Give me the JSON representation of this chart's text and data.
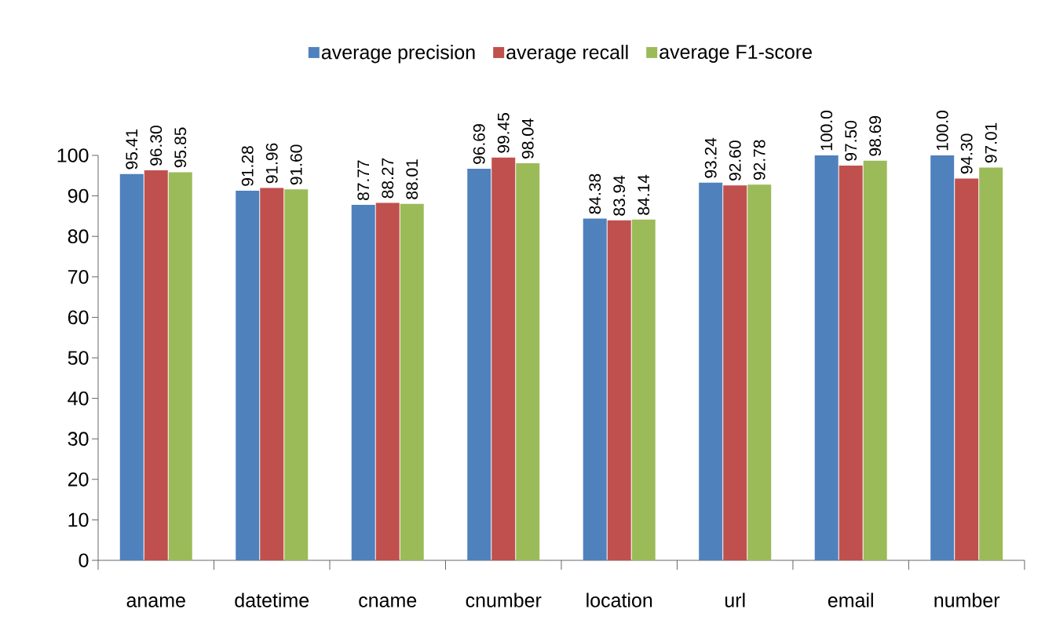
{
  "chart_data": {
    "type": "bar",
    "categories": [
      "aname",
      "datetime",
      "cname",
      "cnumber",
      "location",
      "url",
      "email",
      "number"
    ],
    "series": [
      {
        "name": "average precision",
        "color": "#4f81bd",
        "values": [
          95.41,
          91.28,
          87.77,
          96.69,
          84.38,
          93.24,
          100.0,
          100.0
        ],
        "value_labels": [
          "95.41",
          "91.28",
          "87.77",
          "96.69",
          "84.38",
          "93.24",
          "100.0",
          "100.0"
        ]
      },
      {
        "name": "average recall",
        "color": "#c0504d",
        "values": [
          96.3,
          91.96,
          88.27,
          99.45,
          83.94,
          92.6,
          97.5,
          94.3
        ],
        "value_labels": [
          "96.30",
          "91.96",
          "88.27",
          "99.45",
          "83.94",
          "92.60",
          "97.50",
          "94.30"
        ]
      },
      {
        "name": "average F1-score",
        "color": "#9bbb59",
        "values": [
          95.85,
          91.6,
          88.01,
          98.04,
          84.14,
          92.78,
          98.69,
          97.01
        ],
        "value_labels": [
          "95.85",
          "91.60",
          "88.01",
          "98.04",
          "84.14",
          "92.78",
          "98.69",
          "97.01"
        ]
      }
    ],
    "ylim": [
      0,
      100
    ],
    "yticks": [
      0,
      10,
      20,
      30,
      40,
      50,
      60,
      70,
      80,
      90,
      100
    ],
    "grid": false,
    "legend": "top"
  }
}
